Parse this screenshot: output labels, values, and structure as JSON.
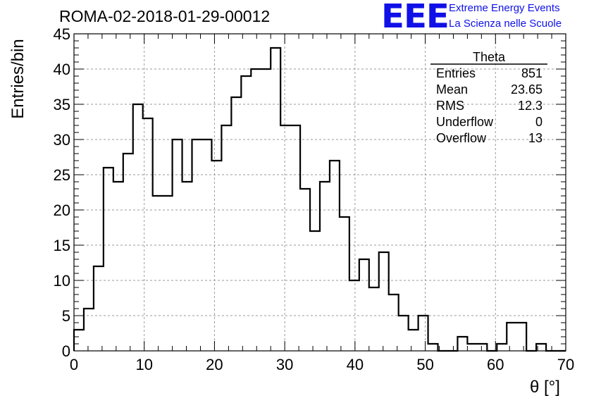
{
  "run_title": "ROMA-02-2018-01-29-00012",
  "logo": {
    "mark": "EEE",
    "line1": "Extreme Energy Events",
    "line2": "La Scienza nelle Scuole",
    "color": "#1010e8"
  },
  "stats": {
    "title": "Theta",
    "rows": [
      {
        "label": "Entries",
        "value": "851"
      },
      {
        "label": "Mean",
        "value": "23.65"
      },
      {
        "label": "RMS",
        "value": "12.3"
      },
      {
        "label": "Underflow",
        "value": "0"
      },
      {
        "label": "Overflow",
        "value": "13"
      }
    ]
  },
  "chart_data": {
    "type": "bar",
    "histogram": true,
    "bin_width": 1.4,
    "bin_edges": [
      0,
      1.4,
      2.8,
      4.2,
      5.6,
      7.0,
      8.4,
      9.8,
      11.2,
      12.6,
      14.0,
      15.4,
      16.8,
      18.2,
      19.6,
      21.0,
      22.4,
      23.8,
      25.2,
      26.6,
      28.0,
      29.4,
      30.8,
      32.2,
      33.6,
      35.0,
      36.4,
      37.8,
      39.2,
      40.6,
      42.0,
      43.4,
      44.8,
      46.2,
      47.6,
      49.0,
      50.4,
      51.8,
      53.2,
      54.6,
      56.0,
      57.4,
      58.8,
      60.2,
      61.6,
      63.0,
      64.4,
      65.8,
      67.2,
      68.6,
      70.0
    ],
    "values": [
      3,
      6,
      12,
      26,
      24,
      28,
      35,
      33,
      22,
      22,
      30,
      24,
      30,
      30,
      27,
      32,
      36,
      39,
      40,
      40,
      43,
      32,
      32,
      23,
      17,
      24,
      27,
      19,
      10,
      13,
      9,
      14,
      8,
      5,
      3,
      5,
      1,
      0,
      0,
      2,
      1,
      1,
      0,
      1,
      4,
      4,
      0,
      1,
      0,
      0
    ],
    "xlabel": "θ [°]",
    "ylabel": "Entries/bin",
    "xlim": [
      0,
      70
    ],
    "ylim": [
      0,
      45
    ],
    "x_ticks": [
      0,
      10,
      20,
      30,
      40,
      50,
      60,
      70
    ],
    "y_ticks": [
      0,
      5,
      10,
      15,
      20,
      25,
      30,
      35,
      40,
      45
    ],
    "grid": true,
    "grid_style": "dashed",
    "line_color": "#000000",
    "grid_color": "#9a9a9a"
  }
}
